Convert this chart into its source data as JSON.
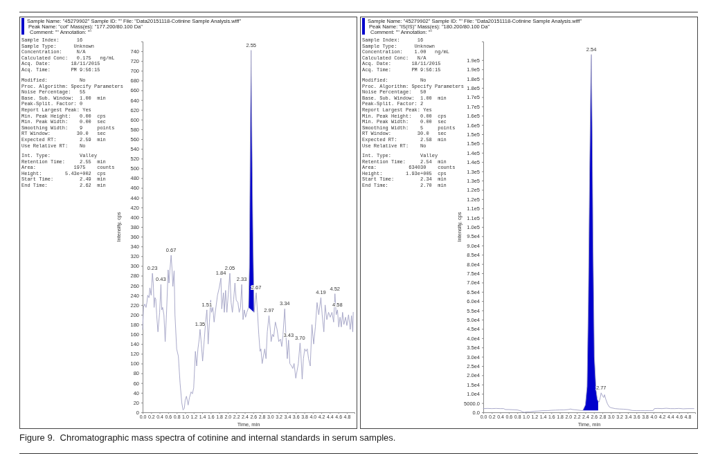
{
  "chart_data": [
    {
      "type": "line",
      "title": "Sample Name: \"45279902\"   Sample ID: \"\"   File: \"Data20151118-Cotinine Sample Analysis.wiff\"",
      "subtitle": "Peak Name: \"cot\"   Mass(es): \"177.200/80.100 Da\"",
      "xlabel": "Time, min",
      "ylabel": "Intensity, cps",
      "annotations": [
        "Comment: \"\"   Annotation: \"\"",
        "Sample Index:      16\nSample Type:      Unknown\nConcentration:     N/A\nCalculated Conc:   0.175   ng/mL\nAcq. Date:       18/11/2015\nAcq. Time:       PM 9:56:15",
        "Modified:           No\nProc. Algorithm: Specify Parameters\nNoise Percentage:   55\nBase. Sub. Window:  1.00  min\nPeak-Split. Factor: 0\nReport Largest Peak: Yes\nMin. Peak Height:   0.00  cps\nMin. Peak Width:    0.00  sec\nSmoothing Width:    9     points\nRT Window:         30.0   sec\nExpected RT:        2.59  min\nUse Relative RT:    No",
        "Int. Type:          Valley\nRetention Time:     2.55  min\nArea:             1975    counts\nHeight:        5.43e+002  cps\nStart Time:         2.49  min\nEnd Time:           2.62  min",
        "Figure 9.  Chromatographic mass spectra of cotinine and internal standards in serum samples.",
        {
          "text": "0.23",
          "x": 0.23,
          "y": 285
        },
        {
          "text": "0.43",
          "x": 0.43,
          "y": 262
        },
        {
          "text": "0.67",
          "x": 0.67,
          "y": 322
        },
        {
          "text": "1.35",
          "x": 1.35,
          "y": 170
        },
        {
          "text": "1.51",
          "x": 1.51,
          "y": 210
        },
        {
          "text": "1.84",
          "x": 1.84,
          "y": 275
        },
        {
          "text": "2.05",
          "x": 2.05,
          "y": 285
        },
        {
          "text": "2.33",
          "x": 2.33,
          "y": 262
        },
        {
          "text": "2.55",
          "x": 2.55,
          "y": 742
        },
        {
          "text": "2.67",
          "x": 2.67,
          "y": 245
        },
        {
          "text": "2.97",
          "x": 2.97,
          "y": 198
        },
        {
          "text": "3.34",
          "x": 3.34,
          "y": 212
        },
        {
          "text": "3.43",
          "x": 3.43,
          "y": 148
        },
        {
          "text": "3.70",
          "x": 3.7,
          "y": 142
        },
        {
          "text": "4.19",
          "x": 4.19,
          "y": 235
        },
        {
          "text": "4.52",
          "x": 4.52,
          "y": 243
        },
        {
          "text": "4.58",
          "x": 4.58,
          "y": 210
        }
      ],
      "xlim": [
        0,
        4.98
      ],
      "ylim": [
        0,
        760
      ],
      "xticks": [
        {
          "value": 0,
          "label": "0.0"
        },
        0.2,
        0.4,
        0.6,
        0.8,
        {
          "value": 1,
          "label": "1.0"
        },
        1.2,
        1.4,
        1.6,
        1.8,
        {
          "value": 2,
          "label": "2.0"
        },
        2.2,
        2.4,
        2.6,
        2.8,
        {
          "value": 3,
          "label": "3.0"
        },
        3.2,
        3.4,
        3.6,
        3.8,
        {
          "value": 4,
          "label": "4.0"
        },
        4.2,
        4.4,
        4.6,
        4.8
      ],
      "yticks": [
        0,
        20,
        40,
        60,
        80,
        100,
        120,
        140,
        160,
        180,
        200,
        220,
        240,
        260,
        280,
        300,
        320,
        340,
        360,
        380,
        400,
        420,
        440,
        460,
        480,
        500,
        520,
        540,
        560,
        580,
        600,
        620,
        640,
        660,
        680,
        700,
        720,
        740
      ],
      "series": [
        {
          "type": "line",
          "color": "#a0a0c4",
          "x": [
            0,
            0.02,
            0.05,
            0.08,
            0.1,
            0.12,
            0.15,
            0.17,
            0.2,
            0.23,
            0.25,
            0.27,
            0.29,
            0.31,
            0.33,
            0.36,
            0.4,
            0.43,
            0.45,
            0.47,
            0.5,
            0.53,
            0.56,
            0.6,
            0.62,
            0.64,
            0.67,
            0.69,
            0.71,
            0.74,
            0.76,
            0.8,
            0.84,
            0.88,
            0.92,
            0.95,
            0.98,
            1,
            1.03,
            1.07,
            1.1,
            1.14,
            1.17,
            1.2,
            1.24,
            1.27,
            1.3,
            1.33,
            1.35,
            1.38,
            1.41,
            1.45,
            1.48,
            1.51,
            1.54,
            1.57,
            1.6,
            1.62,
            1.65,
            1.68,
            1.7,
            1.73,
            1.76,
            1.8,
            1.84,
            1.86,
            1.9,
            1.92,
            1.95,
            1.98,
            2.02,
            2.05,
            2.08,
            2.11,
            2.14,
            2.17,
            2.2,
            2.24,
            2.27,
            2.3,
            2.33,
            2.36,
            2.39,
            2.42,
            2.45,
            2.49,
            2.51,
            2.53,
            2.55,
            2.57,
            2.59,
            2.62,
            2.65,
            2.67,
            2.7,
            2.73,
            2.76,
            2.78,
            2.81,
            2.84,
            2.87,
            2.9,
            2.93,
            2.97,
            3,
            3.02,
            3.05,
            3.08,
            3.12,
            3.16,
            3.2,
            3.24,
            3.27,
            3.3,
            3.34,
            3.37,
            3.4,
            3.43,
            3.46,
            3.5,
            3.53,
            3.56,
            3.6,
            3.63,
            3.66,
            3.7,
            3.72,
            3.75,
            3.78,
            3.81,
            3.84,
            3.87,
            3.9,
            3.94,
            3.98,
            4.02,
            4.06,
            4.1,
            4.14,
            4.19,
            4.22,
            4.26,
            4.29,
            4.33,
            4.37,
            4.41,
            4.45,
            4.49,
            4.52,
            4.55,
            4.58,
            4.61,
            4.64,
            4.67,
            4.7,
            4.73,
            4.77,
            4.8,
            4.84,
            4.88,
            4.91,
            4.94,
            4.95
          ],
          "values": [
            170,
            215,
            222,
            215,
            225,
            240,
            235,
            255,
            240,
            285,
            265,
            215,
            235,
            232,
            200,
            165,
            205,
            262,
            210,
            215,
            200,
            145,
            200,
            292,
            265,
            290,
            322,
            295,
            258,
            290,
            200,
            130,
            115,
            60,
            20,
            5,
            8,
            25,
            33,
            15,
            30,
            42,
            38,
            50,
            125,
            95,
            130,
            150,
            170,
            140,
            105,
            150,
            185,
            210,
            140,
            185,
            230,
            205,
            215,
            185,
            200,
            220,
            240,
            255,
            275,
            212,
            245,
            205,
            250,
            205,
            250,
            285,
            225,
            205,
            232,
            265,
            230,
            225,
            205,
            215,
            262,
            190,
            210,
            195,
            205,
            215,
            300,
            550,
            742,
            550,
            380,
            205,
            230,
            245,
            205,
            160,
            125,
            130,
            100,
            115,
            130,
            110,
            165,
            198,
            170,
            145,
            160,
            155,
            185,
            170,
            145,
            150,
            135,
            160,
            212,
            155,
            110,
            148,
            100,
            95,
            90,
            100,
            70,
            85,
            100,
            142,
            120,
            68,
            110,
            130,
            125,
            130,
            110,
            95,
            180,
            140,
            175,
            225,
            200,
            235,
            200,
            165,
            220,
            190,
            205,
            195,
            205,
            185,
            243,
            200,
            210,
            175,
            195,
            175,
            205,
            180,
            195,
            178,
            200,
            170,
            198,
            165,
            205
          ]
        },
        {
          "type": "area",
          "color": "#0000cc",
          "x": [
            2.49,
            2.51,
            2.53,
            2.55,
            2.57,
            2.59,
            2.62
          ],
          "values": [
            215,
            300,
            550,
            742,
            550,
            380,
            205
          ]
        }
      ]
    },
    {
      "type": "line",
      "title": "Sample Name: \"45279902\"   Sample ID: \"\"   File: \"Data20151118-Cotinine Sample Analysis.wiff\"",
      "subtitle": "Peak Name: \"IS(IS)\"   Mass(es): \"180.200/80.100 Da\"",
      "xlabel": "Time, min",
      "ylabel": "Intensity, cps",
      "annotations": [
        "Comment: \"\"   Annotation: \"\"",
        "Sample Index:      16\nSample Type:      Unknown\nConcentration:    1.00   ng/mL\nCalculated Conc:   N/A\nAcq. Date:       18/11/2015\nAcq. Time:       PM 9:56:15",
        "Modified:           No\nProc. Algorithm: Specify Parameters\nNoise Percentage:   50\nBase. Sub. Window:  1.00  min\nPeak-Split. Factor: 2\nReport Largest Peak: Yes\nMin. Peak Height:   0.00  cps\nMin. Peak Width:    0.00  sec\nSmoothing Width:    5     points\nRT Window:         30.0   sec\nExpected RT:        2.58  min\nUse Relative RT:    No",
        "Int. Type:          Valley\nRetention Time:     2.54  min\nArea:           634030    counts\nHeight:        1.93e+005  cps\nStart Time:         2.34  min\nEnd Time:           2.70  min",
        {
          "text": "2.54",
          "x": 2.54,
          "y": 193000
        },
        {
          "text": "2.77",
          "x": 2.77,
          "y": 10500
        }
      ],
      "xlim": [
        0,
        4.98
      ],
      "ylim": [
        0,
        200000
      ],
      "xticks": [
        {
          "value": 0,
          "label": "0.0"
        },
        0.2,
        0.4,
        0.6,
        0.8,
        {
          "value": 1,
          "label": "1.0"
        },
        1.2,
        1.4,
        1.6,
        1.8,
        {
          "value": 2,
          "label": "2.0"
        },
        2.2,
        2.4,
        2.6,
        2.8,
        {
          "value": 3,
          "label": "3.0"
        },
        3.2,
        3.4,
        3.6,
        3.8,
        {
          "value": 4,
          "label": "4.0"
        },
        4.2,
        4.4,
        4.6,
        4.8
      ],
      "yticks": [
        {
          "value": 0,
          "label": "0.0"
        },
        {
          "value": 5000,
          "label": "5000.0"
        },
        {
          "value": 10000,
          "label": "1.0e4"
        },
        {
          "value": 15000,
          "label": "1.5e4"
        },
        {
          "value": 20000,
          "label": "2.0e4"
        },
        {
          "value": 25000,
          "label": "2.5e4"
        },
        {
          "value": 30000,
          "label": "3.0e4"
        },
        {
          "value": 35000,
          "label": "3.5e4"
        },
        {
          "value": 40000,
          "label": "4.0e4"
        },
        {
          "value": 45000,
          "label": "4.5e4"
        },
        {
          "value": 50000,
          "label": "5.0e4"
        },
        {
          "value": 55000,
          "label": "5.5e4"
        },
        {
          "value": 60000,
          "label": "6.0e4"
        },
        {
          "value": 65000,
          "label": "6.5e4"
        },
        {
          "value": 70000,
          "label": "7.0e4"
        },
        {
          "value": 75000,
          "label": "7.5e4"
        },
        {
          "value": 80000,
          "label": "8.0e4"
        },
        {
          "value": 85000,
          "label": "8.5e4"
        },
        {
          "value": 90000,
          "label": "9.0e4"
        },
        {
          "value": 95000,
          "label": "9.5e4"
        },
        {
          "value": 100000,
          "label": "1.0e5"
        },
        {
          "value": 105000,
          "label": "1.1e5"
        },
        {
          "value": 110000,
          "label": "1.1e5"
        },
        {
          "value": 115000,
          "label": "1.2e5"
        },
        {
          "value": 120000,
          "label": "1.2e5"
        },
        {
          "value": 125000,
          "label": "1.3e5"
        },
        {
          "value": 130000,
          "label": "1.3e5"
        },
        {
          "value": 135000,
          "label": "1.4e5"
        },
        {
          "value": 140000,
          "label": "1.4e5"
        },
        {
          "value": 145000,
          "label": "1.5e5"
        },
        {
          "value": 150000,
          "label": "1.5e5"
        },
        {
          "value": 155000,
          "label": "1.6e5"
        },
        {
          "value": 160000,
          "label": "1.6e5"
        },
        {
          "value": 165000,
          "label": "1.7e5"
        },
        {
          "value": 170000,
          "label": "1.7e5"
        },
        {
          "value": 175000,
          "label": "1.8e5"
        },
        {
          "value": 180000,
          "label": "1.8e5"
        },
        {
          "value": 185000,
          "label": "1.9e5"
        },
        {
          "value": 190000,
          "label": "1.9e5"
        }
      ],
      "series": [
        {
          "type": "line",
          "color": "#a0a0c4",
          "x": [
            0,
            0.1,
            0.2,
            0.3,
            0.4,
            0.48,
            0.52,
            0.6,
            0.7,
            0.8,
            0.88,
            0.93,
            0.97,
            1.02,
            1.1,
            1.2,
            1.3,
            1.4,
            1.5,
            1.6,
            1.7,
            1.8,
            1.9,
            2,
            2.05,
            2.1,
            2.2,
            2.3,
            2.34,
            2.4,
            2.44,
            2.47,
            2.5,
            2.53,
            2.54,
            2.56,
            2.58,
            2.61,
            2.65,
            2.68,
            2.7,
            2.72,
            2.75,
            2.77,
            2.8,
            2.83,
            2.85,
            2.88,
            2.92,
            2.96,
            3,
            3.1,
            3.2,
            3.3,
            3.4,
            3.5,
            3.6,
            3.7,
            3.8,
            3.9,
            3.99,
            4.02,
            4.1,
            4.2,
            4.3,
            4.4,
            4.5,
            4.6,
            4.7,
            4.8,
            4.9,
            4.95
          ],
          "values": [
            2000,
            2100,
            2000,
            2100,
            2000,
            2000,
            1500,
            1500,
            1400,
            1300,
            800,
            200,
            0,
            300,
            300,
            600,
            700,
            900,
            900,
            1100,
            1200,
            1300,
            1300,
            1500,
            1800,
            1500,
            1300,
            1000,
            1000,
            4000,
            14000,
            60000,
            130000,
            185000,
            193000,
            150000,
            90000,
            30000,
            12000,
            7000,
            6000,
            5500,
            8000,
            10500,
            9000,
            8000,
            9500,
            7000,
            4500,
            3000,
            2500,
            2000,
            1800,
            1700,
            1500,
            1000,
            900,
            900,
            900,
            900,
            900,
            2000,
            2100,
            2000,
            2200,
            2000,
            2000,
            2100,
            1900,
            2000,
            2000,
            2000
          ]
        },
        {
          "type": "area",
          "color": "#0000cc",
          "x": [
            2.34,
            2.4,
            2.44,
            2.47,
            2.5,
            2.53,
            2.54,
            2.56,
            2.58,
            2.61,
            2.65,
            2.68,
            2.7,
            2.7
          ],
          "values": [
            1000,
            4000,
            14000,
            60000,
            130000,
            185000,
            193000,
            150000,
            90000,
            30000,
            12000,
            7000,
            6000,
            1000
          ]
        }
      ]
    }
  ]
}
